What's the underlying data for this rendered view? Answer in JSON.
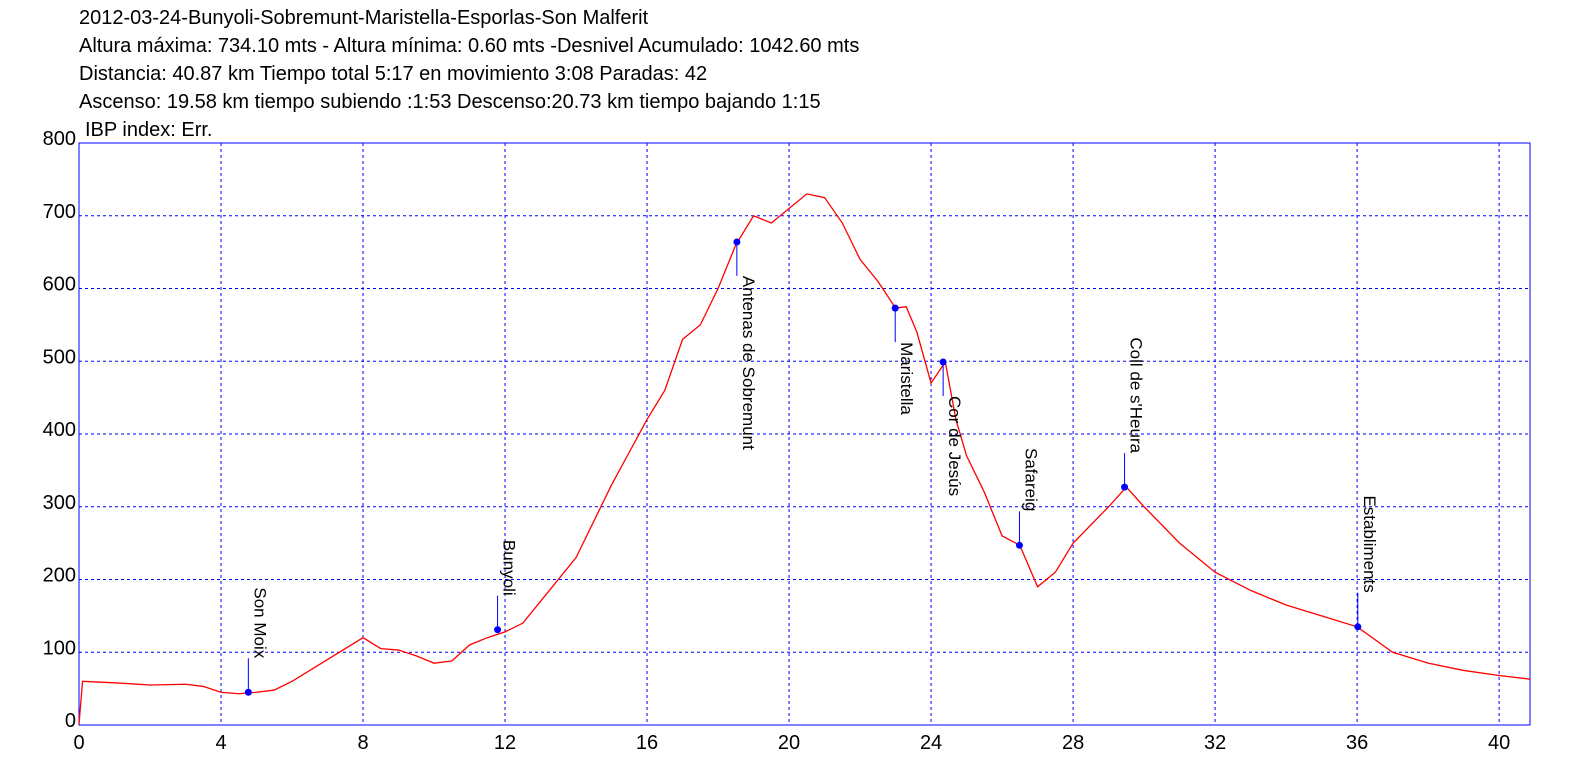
{
  "chart_data": {
    "type": "line",
    "title": "2012-03-24-Bunyoli-Sobremunt-Maristella-Esporlas-Son Malferit",
    "subtitle": [
      "Altura máxima: 734.10 mts - Altura mínima: 0.60 mts -Desnivel Acumulado: 1042.60 mts",
      "Distancia: 40.87 km  Tiempo total 5:17  en movimiento 3:08 Paradas: 42",
      "Ascenso: 19.58 km  tiempo subiendo :1:53  Descenso:20.73 km tiempo bajando 1:15",
      "IBP index: Err."
    ],
    "x": [
      0,
      0.1,
      1,
      2,
      3,
      3.5,
      4,
      4.5,
      5,
      5.5,
      6,
      7,
      8,
      8.5,
      9,
      9.5,
      10,
      10.5,
      11,
      11.5,
      12,
      12.5,
      13,
      14,
      15,
      16,
      16.5,
      17,
      17.5,
      18,
      18.5,
      19,
      19.5,
      20,
      20.5,
      21,
      21.5,
      22,
      22.5,
      23,
      23.3,
      23.6,
      24,
      24.4,
      24.7,
      25,
      25.5,
      26,
      26.5,
      27,
      27.5,
      28,
      29,
      29.5,
      30,
      31,
      32,
      33,
      34,
      35,
      36,
      37,
      38,
      39,
      40,
      40.87
    ],
    "series": [
      {
        "color": "#ff0000",
        "values": [
          1,
          60,
          58,
          55,
          56,
          53,
          45,
          43,
          45,
          48,
          60,
          90,
          120,
          105,
          103,
          95,
          85,
          88,
          110,
          120,
          128,
          140,
          170,
          230,
          330,
          420,
          460,
          530,
          550,
          600,
          660,
          700,
          690,
          710,
          730,
          725,
          690,
          640,
          610,
          573,
          575,
          540,
          470,
          499,
          420,
          370,
          320,
          260,
          247,
          190,
          210,
          250,
          300,
          327,
          300,
          250,
          210,
          185,
          165,
          150,
          135,
          100,
          85,
          75,
          68,
          63
        ]
      }
    ],
    "waypoints": [
      {
        "name": "Son Moix",
        "x": 4.77,
        "elevation": 45
      },
      {
        "name": "Bunyoli",
        "x": 11.79,
        "elevation": 131
      },
      {
        "name": "Antenas de Sobremunt",
        "x": 18.53,
        "elevation": 664
      },
      {
        "name": "Maristella",
        "x": 22.99,
        "elevation": 573
      },
      {
        "name": "Cor de Jesús",
        "x": 24.34,
        "elevation": 499
      },
      {
        "name": "Safareig",
        "x": 26.49,
        "elevation": 247
      },
      {
        "name": "Coll de s'Heura",
        "x": 29.45,
        "elevation": 327
      },
      {
        "name": "Establiments",
        "x": 36.02,
        "elevation": 135
      }
    ],
    "waypoint_color": "#0000ff",
    "xlim": [
      0,
      40.87
    ],
    "ylim": [
      0,
      800
    ],
    "xticks": [
      0,
      4,
      8,
      12,
      16,
      20,
      24,
      28,
      32,
      36,
      40
    ],
    "yticks": [
      0,
      100,
      200,
      300,
      400,
      500,
      600,
      700,
      800
    ],
    "grid": true,
    "grid_color": "#0000ff",
    "frame_color": "#0000ff"
  }
}
